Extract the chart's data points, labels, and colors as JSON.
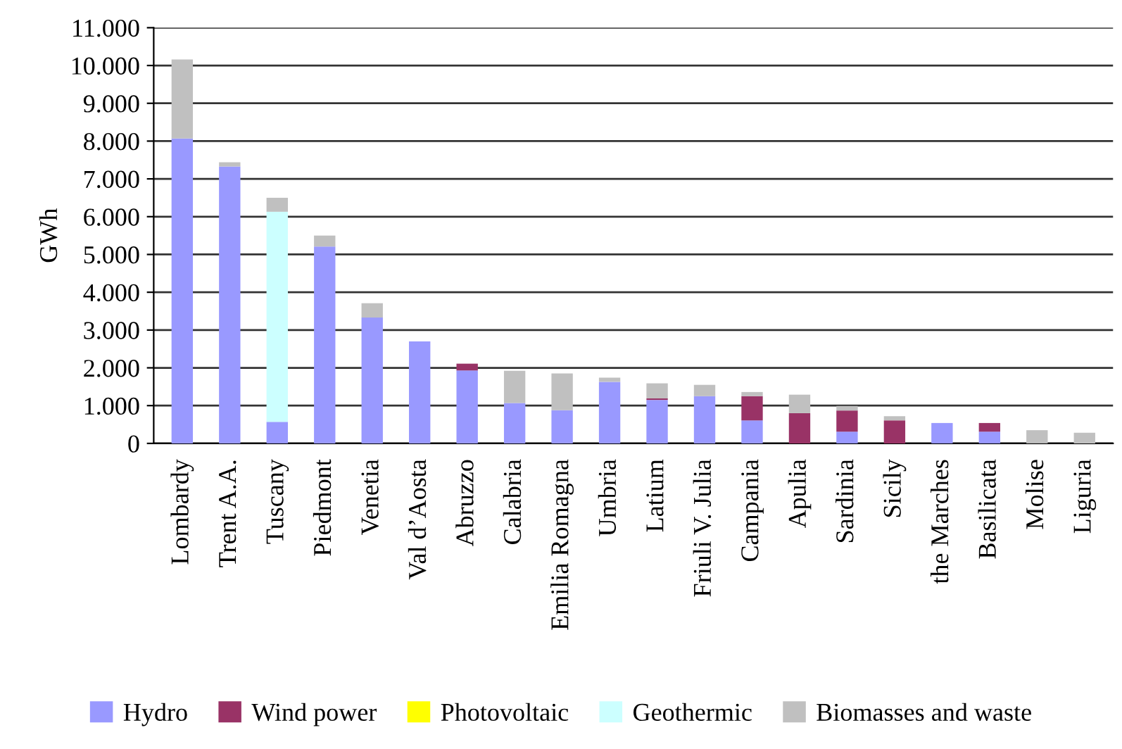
{
  "chart_data": {
    "type": "bar",
    "stacked": true,
    "ylabel": "GWh",
    "categories": [
      "Lombardy",
      "Trent A.A.",
      "Tuscany",
      "Piedmont",
      "Venetia",
      "Val d’Aosta",
      "Abruzzo",
      "Calabria",
      "Emilia Romagna",
      "Umbria",
      "Latium",
      "Friuli V. Julia",
      "Campania",
      "Apulia",
      "Sardinia",
      "Sicily",
      "the Marches",
      "Basilicata",
      "Molise",
      "Liguria"
    ],
    "series": [
      {
        "name": "Hydro",
        "color": "#9999ff",
        "values": [
          8070,
          7330,
          570,
          5210,
          3330,
          2700,
          1930,
          1070,
          880,
          1630,
          1150,
          1250,
          610,
          0,
          310,
          0,
          540,
          310,
          0,
          0
        ]
      },
      {
        "name": "Wind power",
        "color": "#993366",
        "values": [
          0,
          0,
          0,
          0,
          0,
          0,
          180,
          0,
          0,
          0,
          40,
          0,
          640,
          800,
          560,
          610,
          0,
          230,
          0,
          0
        ]
      },
      {
        "name": "Photovoltaic",
        "color": "#ffff00",
        "values": [
          0,
          0,
          0,
          0,
          0,
          0,
          0,
          0,
          0,
          0,
          0,
          0,
          0,
          0,
          0,
          0,
          0,
          0,
          0,
          0
        ]
      },
      {
        "name": "Geothermic",
        "color": "#ccffff",
        "values": [
          0,
          0,
          5560,
          0,
          0,
          0,
          0,
          0,
          0,
          0,
          0,
          0,
          0,
          0,
          0,
          0,
          0,
          0,
          0,
          0
        ]
      },
      {
        "name": "Biomasses and waste",
        "color": "#c0c0c0",
        "values": [
          2090,
          110,
          370,
          290,
          380,
          0,
          0,
          850,
          970,
          110,
          400,
          300,
          110,
          490,
          120,
          110,
          0,
          0,
          350,
          280
        ]
      }
    ],
    "ylim": [
      0,
      11000
    ],
    "yticks": [
      {
        "value": 0,
        "label": "0"
      },
      {
        "value": 1000,
        "label": "1.000"
      },
      {
        "value": 2000,
        "label": "2.000"
      },
      {
        "value": 3000,
        "label": "3.000"
      },
      {
        "value": 4000,
        "label": "4.000"
      },
      {
        "value": 5000,
        "label": "5.000"
      },
      {
        "value": 6000,
        "label": "6.000"
      },
      {
        "value": 7000,
        "label": "7.000"
      },
      {
        "value": 8000,
        "label": "8.000"
      },
      {
        "value": 9000,
        "label": "9.000"
      },
      {
        "value": 10000,
        "label": "10.000"
      },
      {
        "value": 11000,
        "label": "11.000"
      }
    ],
    "grid": "y",
    "legend": "bottom"
  }
}
